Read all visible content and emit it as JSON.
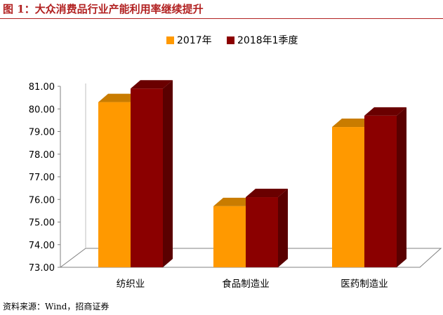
{
  "figure": {
    "title": "图 1：大众消费品行业产能利用率继续提升",
    "source": "资料来源：Wind，招商证券"
  },
  "chart_data": {
    "type": "bar",
    "categories": [
      "纺织业",
      "食品制造业",
      "医药制造业"
    ],
    "series": [
      {
        "name": "2017年",
        "values": [
          80.3,
          75.7,
          79.2
        ],
        "color": "#FF9900",
        "top_color": "#C97C00",
        "side_color": "#B36B00"
      },
      {
        "name": "2018年1季度",
        "values": [
          80.9,
          76.1,
          79.7
        ],
        "color": "#8B0000",
        "top_color": "#6A0000",
        "side_color": "#5A0000"
      }
    ],
    "ylim": [
      73,
      81
    ],
    "y_ticks": [
      "73.00",
      "74.00",
      "75.00",
      "76.00",
      "77.00",
      "78.00",
      "79.00",
      "80.00",
      "81.00"
    ],
    "legend_position": "top-center",
    "grid": false,
    "three_d": true
  }
}
